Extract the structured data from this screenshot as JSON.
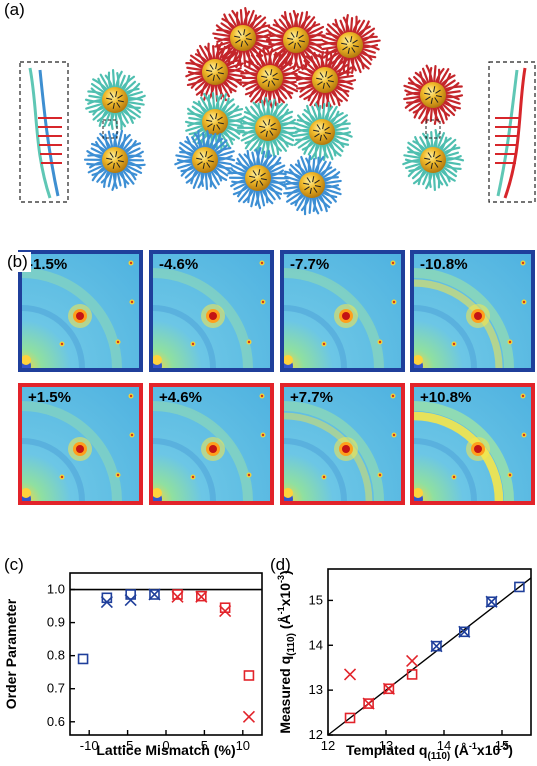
{
  "panel_a": {
    "label": "(a)"
  },
  "panel_b": {
    "label": "(b)",
    "tiles": [
      {
        "text": "-1.5%",
        "border": "#1f3f9b",
        "halo": 0.2
      },
      {
        "text": "-4.6%",
        "border": "#1f3f9b",
        "halo": 0.25
      },
      {
        "text": "-7.7%",
        "border": "#1f3f9b",
        "halo": 0.3
      },
      {
        "text": "-10.8%",
        "border": "#1f3f9b",
        "halo": 0.55
      },
      {
        "text": "+1.5%",
        "border": "#e2232a",
        "halo": 0.2
      },
      {
        "text": "+4.6%",
        "border": "#e2232a",
        "halo": 0.3
      },
      {
        "text": "+7.7%",
        "border": "#e2232a",
        "halo": 0.45
      },
      {
        "text": "+10.8%",
        "border": "#e2232a",
        "halo": 0.9
      }
    ]
  },
  "chart_data": [
    {
      "panel": "(c)",
      "type": "scatter",
      "xlabel": "Lattice Mismatch (%)",
      "ylabel": "Order Parameter",
      "xlim": [
        -12.5,
        12.5
      ],
      "ylim": [
        0.56,
        1.05
      ],
      "xticks": [
        -10,
        -5,
        0,
        5,
        10
      ],
      "yticks": [
        0.6,
        0.7,
        0.8,
        0.9,
        1.0
      ],
      "reference_line_y": 1.0,
      "series": [
        {
          "marker": "square",
          "color": "#1f3f9b",
          "points": [
            [
              -10.8,
              0.79
            ],
            [
              -7.7,
              0.975
            ],
            [
              -4.6,
              0.985
            ],
            [
              -1.5,
              0.985
            ]
          ]
        },
        {
          "marker": "cross",
          "color": "#1f3f9b",
          "points": [
            [
              -7.7,
              0.962
            ],
            [
              -4.6,
              0.968
            ],
            [
              -1.5,
              0.985
            ]
          ]
        },
        {
          "marker": "square",
          "color": "#e2232a",
          "points": [
            [
              1.5,
              0.985
            ],
            [
              4.6,
              0.98
            ],
            [
              7.7,
              0.945
            ],
            [
              10.8,
              0.74
            ]
          ]
        },
        {
          "marker": "cross",
          "color": "#e2232a",
          "points": [
            [
              1.5,
              0.978
            ],
            [
              4.6,
              0.978
            ],
            [
              7.7,
              0.935
            ],
            [
              10.8,
              0.615
            ]
          ]
        }
      ]
    },
    {
      "panel": "(d)",
      "type": "scatter",
      "xlabel": "Templated q",
      "xlabel_sub": "(110)",
      "xlabel_unit": "(Å",
      "xlabel_unit_sup": "-1",
      "xlabel_unit_tail": "x10",
      "xlabel_unit_sup2": "-3",
      "xlabel_close": ")",
      "ylabel": "Measured q",
      "ylabel_sub": "(110)",
      "ylabel_unit": "(Å",
      "ylabel_unit_sup": "-1",
      "ylabel_unit_tail": "x10",
      "ylabel_unit_sup2": "-3",
      "ylabel_close": ")",
      "xlim": [
        12.0,
        15.5
      ],
      "ylim": [
        12.0,
        15.7
      ],
      "xticks": [
        12,
        13,
        14,
        15
      ],
      "yticks": [
        12,
        13,
        14,
        15
      ],
      "diagonal": true,
      "series": [
        {
          "marker": "square",
          "color": "#1f3f9b",
          "points": [
            [
              13.87,
              13.98
            ],
            [
              14.35,
              14.3
            ],
            [
              14.82,
              14.97
            ],
            [
              15.3,
              15.3
            ]
          ]
        },
        {
          "marker": "cross",
          "color": "#1f3f9b",
          "points": [
            [
              13.87,
              13.98
            ],
            [
              14.35,
              14.3
            ],
            [
              14.82,
              14.97
            ]
          ]
        },
        {
          "marker": "square",
          "color": "#e2232a",
          "points": [
            [
              12.38,
              12.38
            ],
            [
              12.7,
              12.7
            ],
            [
              13.05,
              13.03
            ],
            [
              13.45,
              13.35
            ]
          ]
        },
        {
          "marker": "cross",
          "color": "#e2232a",
          "points": [
            [
              12.38,
              13.35
            ],
            [
              12.7,
              12.7
            ],
            [
              13.05,
              13.03
            ],
            [
              13.45,
              13.65
            ]
          ]
        }
      ]
    }
  ]
}
